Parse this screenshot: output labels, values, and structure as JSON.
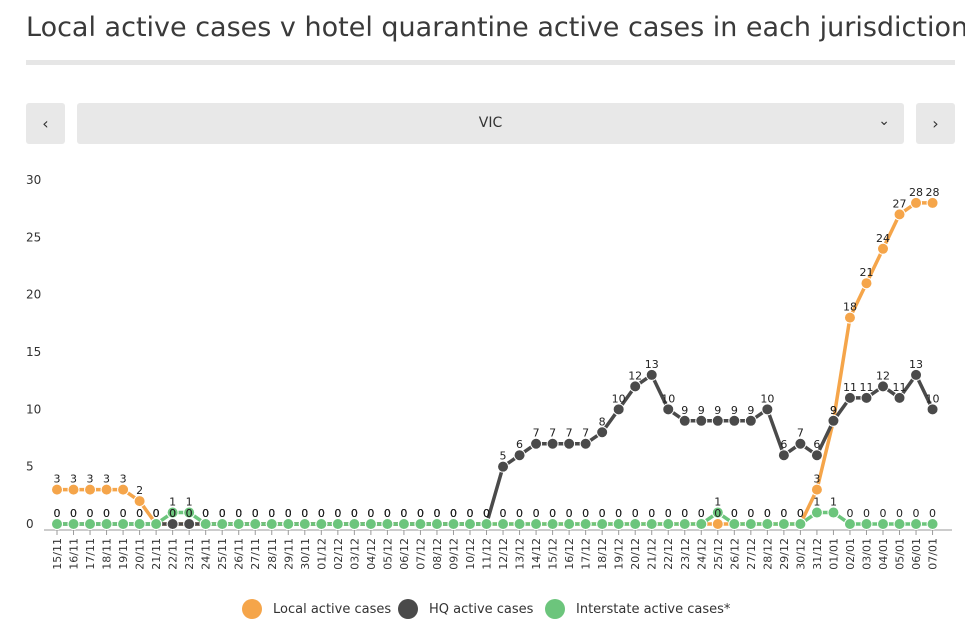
{
  "page": {
    "title": "Local active cases v hotel quarantine active cases in each jurisdiction"
  },
  "controls": {
    "prev_icon": "chevron-left-icon",
    "prev_glyph": "‹",
    "next_icon": "chevron-right-icon",
    "next_glyph": "›",
    "selector_value": "VIC",
    "selector_icon": "chevron-down-icon",
    "selector_glyph": "⌄"
  },
  "chart_data": {
    "type": "line",
    "categories": [
      "15/11",
      "16/11",
      "17/11",
      "18/11",
      "19/11",
      "20/11",
      "21/11",
      "22/11",
      "23/11",
      "24/11",
      "25/11",
      "26/11",
      "27/11",
      "28/11",
      "29/11",
      "30/11",
      "01/12",
      "02/12",
      "03/12",
      "04/12",
      "05/12",
      "06/12",
      "07/12",
      "08/12",
      "09/12",
      "10/12",
      "11/12",
      "12/12",
      "13/12",
      "14/12",
      "15/12",
      "16/12",
      "17/12",
      "18/12",
      "19/12",
      "20/12",
      "21/12",
      "22/12",
      "23/12",
      "24/12",
      "25/12",
      "26/12",
      "27/12",
      "28/12",
      "29/12",
      "30/12",
      "31/12",
      "01/01",
      "02/01",
      "03/01",
      "04/01",
      "05/01",
      "06/01",
      "07/01"
    ],
    "ylim": [
      0,
      30
    ],
    "yticks": [
      0,
      5,
      10,
      15,
      20,
      25,
      30
    ],
    "grid": false,
    "legend_position": "bottom",
    "series": [
      {
        "name": "Local active cases",
        "color": "#f5a54a",
        "values": [
          3,
          3,
          3,
          3,
          3,
          2,
          0,
          0,
          0,
          0,
          0,
          0,
          0,
          0,
          0,
          0,
          0,
          0,
          0,
          0,
          0,
          0,
          0,
          0,
          0,
          0,
          0,
          0,
          0,
          0,
          0,
          0,
          0,
          0,
          0,
          0,
          0,
          0,
          0,
          0,
          0,
          0,
          0,
          0,
          0,
          0,
          3,
          9,
          18,
          21,
          24,
          27,
          28,
          28
        ]
      },
      {
        "name": "HQ active cases",
        "color": "#4a4a4a",
        "values": [
          0,
          0,
          0,
          0,
          0,
          0,
          0,
          0,
          0,
          0,
          0,
          0,
          0,
          0,
          0,
          0,
          0,
          0,
          0,
          0,
          0,
          0,
          0,
          0,
          0,
          0,
          0,
          5,
          6,
          7,
          7,
          7,
          7,
          8,
          10,
          12,
          13,
          10,
          9,
          9,
          9,
          9,
          9,
          10,
          6,
          7,
          6,
          9,
          11,
          11,
          12,
          11,
          13,
          10
        ]
      },
      {
        "name": "Interstate active cases*",
        "color": "#6cc57c",
        "values": [
          0,
          0,
          0,
          0,
          0,
          0,
          0,
          1,
          1,
          0,
          0,
          0,
          0,
          0,
          0,
          0,
          0,
          0,
          0,
          0,
          0,
          0,
          0,
          0,
          0,
          0,
          0,
          0,
          0,
          0,
          0,
          0,
          0,
          0,
          0,
          0,
          0,
          0,
          0,
          0,
          1,
          0,
          0,
          0,
          0,
          0,
          1,
          1,
          0,
          0,
          0,
          0,
          0,
          0
        ]
      }
    ]
  }
}
